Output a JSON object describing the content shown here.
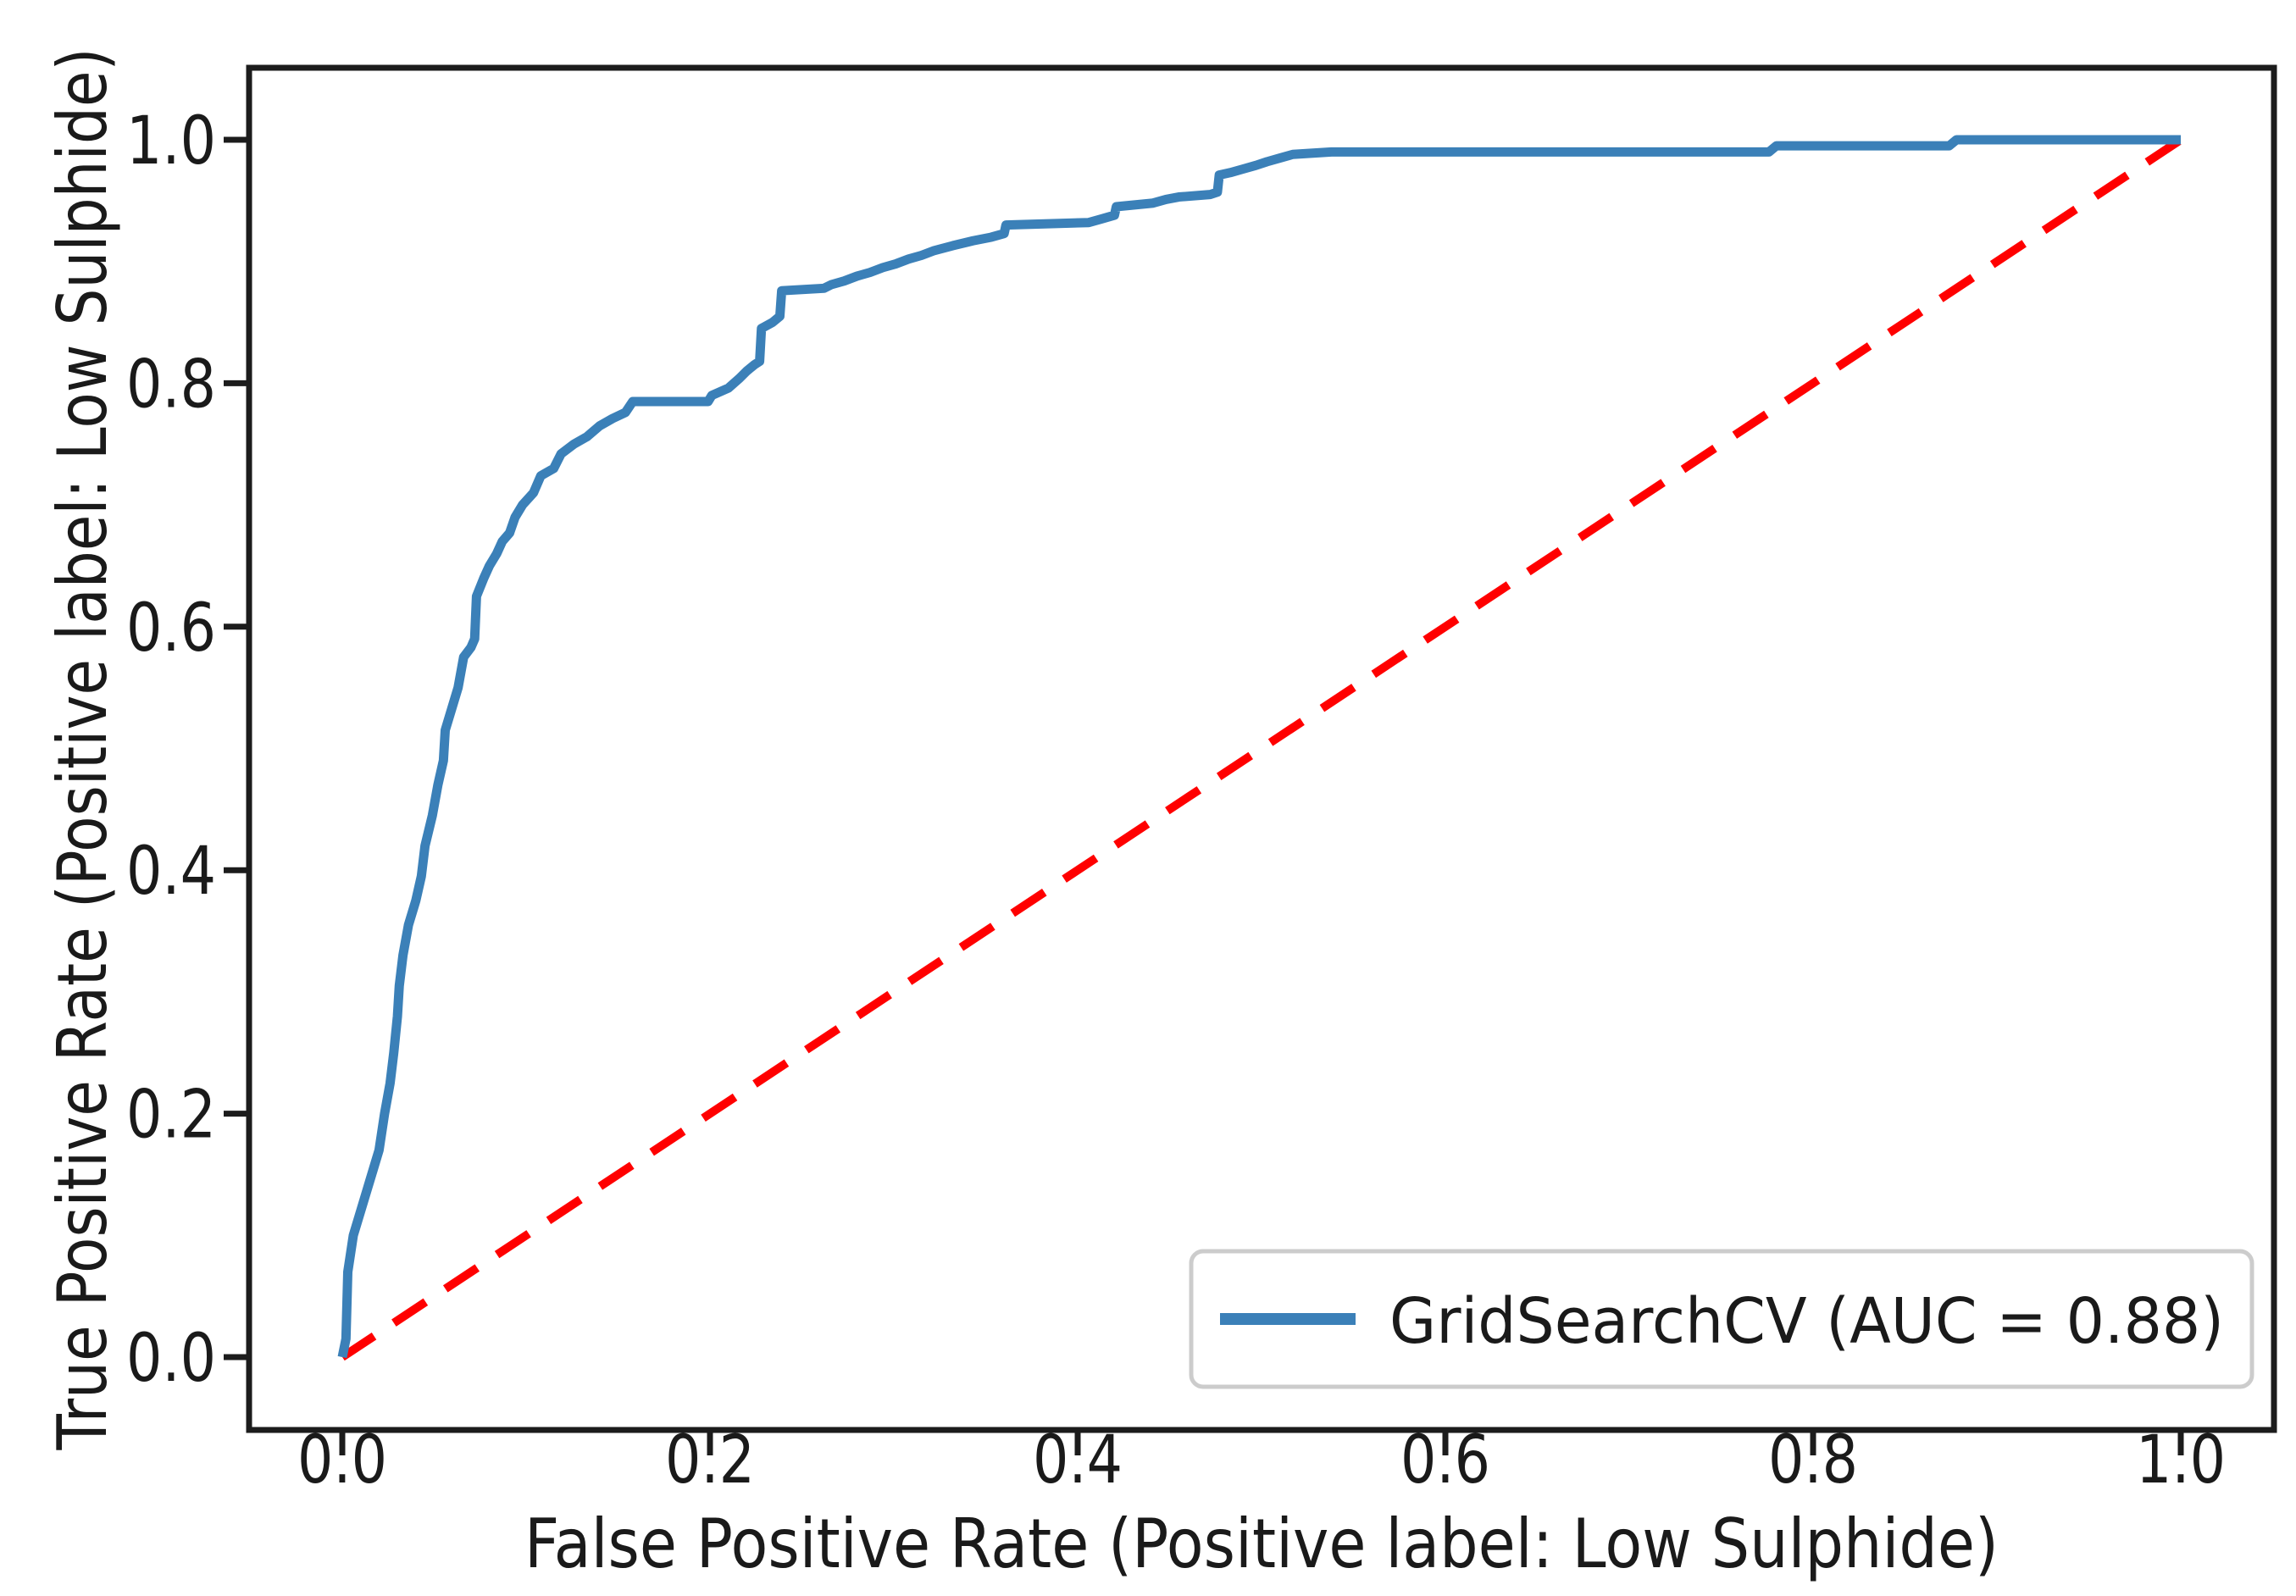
{
  "figure": {
    "background_color": "#ffffff",
    "spine_color": "#1c1c1c"
  },
  "chart_data": {
    "type": "line",
    "title": "",
    "xlabel": "False Positive Rate (Positive label: Low Sulphide)",
    "ylabel": "True Positive Rate (Positive label: Low Sulphide)",
    "xlim": [
      -0.05,
      1.05
    ],
    "ylim": [
      -0.05,
      1.05
    ],
    "x_ticks": [
      "0.0",
      "0.2",
      "0.4",
      "0.6",
      "0.8",
      "1.0"
    ],
    "y_ticks": [
      "0.0",
      "0.2",
      "0.4",
      "0.6",
      "0.8",
      "1.0"
    ],
    "x_tick_values": [
      0.0,
      0.2,
      0.4,
      0.6,
      0.8,
      1.0
    ],
    "y_tick_values": [
      0.0,
      0.2,
      0.4,
      0.6,
      0.8,
      1.0
    ],
    "grid": false,
    "legend_position": "lower right",
    "series": [
      {
        "name": "GridSearchCV (AUC = 0.88)",
        "auc": 0.88,
        "color": "#3b80b8",
        "style": "solid",
        "points": [
          [
            0.0,
            0.0
          ],
          [
            0.002,
            0.015
          ],
          [
            0.003,
            0.07
          ],
          [
            0.006,
            0.1
          ],
          [
            0.01,
            0.12
          ],
          [
            0.014,
            0.14
          ],
          [
            0.017,
            0.155
          ],
          [
            0.02,
            0.17
          ],
          [
            0.023,
            0.2
          ],
          [
            0.026,
            0.225
          ],
          [
            0.028,
            0.25
          ],
          [
            0.03,
            0.28
          ],
          [
            0.031,
            0.305
          ],
          [
            0.033,
            0.33
          ],
          [
            0.036,
            0.355
          ],
          [
            0.04,
            0.375
          ],
          [
            0.043,
            0.395
          ],
          [
            0.045,
            0.42
          ],
          [
            0.049,
            0.445
          ],
          [
            0.052,
            0.47
          ],
          [
            0.055,
            0.49
          ],
          [
            0.056,
            0.515
          ],
          [
            0.059,
            0.53
          ],
          [
            0.063,
            0.55
          ],
          [
            0.066,
            0.575
          ],
          [
            0.07,
            0.583
          ],
          [
            0.072,
            0.59
          ],
          [
            0.073,
            0.625
          ],
          [
            0.077,
            0.64
          ],
          [
            0.08,
            0.65
          ],
          [
            0.084,
            0.66
          ],
          [
            0.087,
            0.67
          ],
          [
            0.091,
            0.677
          ],
          [
            0.094,
            0.69
          ],
          [
            0.098,
            0.7
          ],
          [
            0.104,
            0.71
          ],
          [
            0.108,
            0.724
          ],
          [
            0.115,
            0.73
          ],
          [
            0.119,
            0.742
          ],
          [
            0.126,
            0.75
          ],
          [
            0.133,
            0.756
          ],
          [
            0.14,
            0.765
          ],
          [
            0.147,
            0.771
          ],
          [
            0.154,
            0.776
          ],
          [
            0.158,
            0.785
          ],
          [
            0.199,
            0.785
          ],
          [
            0.201,
            0.79
          ],
          [
            0.21,
            0.796
          ],
          [
            0.216,
            0.804
          ],
          [
            0.22,
            0.81
          ],
          [
            0.224,
            0.815
          ],
          [
            0.227,
            0.818
          ],
          [
            0.228,
            0.845
          ],
          [
            0.234,
            0.85
          ],
          [
            0.238,
            0.855
          ],
          [
            0.239,
            0.876
          ],
          [
            0.262,
            0.878
          ],
          [
            0.266,
            0.881
          ],
          [
            0.273,
            0.884
          ],
          [
            0.28,
            0.888
          ],
          [
            0.287,
            0.891
          ],
          [
            0.294,
            0.895
          ],
          [
            0.301,
            0.898
          ],
          [
            0.308,
            0.902
          ],
          [
            0.315,
            0.905
          ],
          [
            0.322,
            0.909
          ],
          [
            0.332,
            0.913
          ],
          [
            0.343,
            0.917
          ],
          [
            0.353,
            0.92
          ],
          [
            0.36,
            0.923
          ],
          [
            0.361,
            0.93
          ],
          [
            0.406,
            0.932
          ],
          [
            0.413,
            0.935
          ],
          [
            0.42,
            0.938
          ],
          [
            0.421,
            0.945
          ],
          [
            0.441,
            0.948
          ],
          [
            0.448,
            0.951
          ],
          [
            0.455,
            0.953
          ],
          [
            0.472,
            0.955
          ],
          [
            0.476,
            0.957
          ],
          [
            0.477,
            0.971
          ],
          [
            0.483,
            0.973
          ],
          [
            0.49,
            0.976
          ],
          [
            0.497,
            0.979
          ],
          [
            0.503,
            0.982
          ],
          [
            0.51,
            0.985
          ],
          [
            0.517,
            0.988
          ],
          [
            0.538,
            0.99
          ],
          [
            0.776,
            0.99
          ],
          [
            0.78,
            0.995
          ],
          [
            0.874,
            0.995
          ],
          [
            0.878,
            1.0
          ],
          [
            1.0,
            1.0
          ]
        ]
      },
      {
        "name": "chance line",
        "color": "#ff0000",
        "style": "dashed",
        "points": [
          [
            0.0,
            0.0
          ],
          [
            1.0,
            1.0
          ]
        ]
      }
    ]
  }
}
